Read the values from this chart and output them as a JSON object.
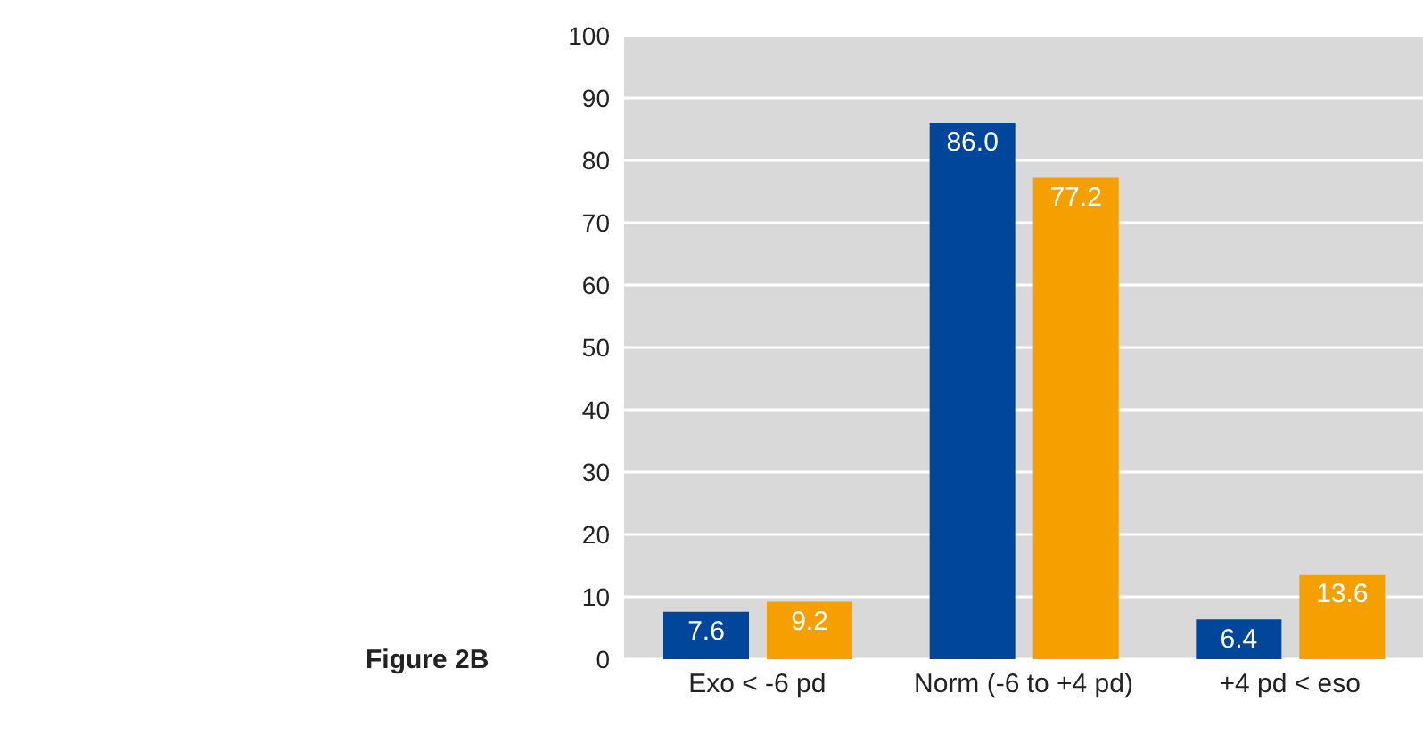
{
  "chart_data": {
    "type": "bar",
    "categories": [
      "Exo < -6 pd",
      "Norm (-6 to +4 pd)",
      "+4 pd < eso"
    ],
    "series": [
      {
        "color": "#00479b",
        "values": [
          7.6,
          86.0,
          6.4
        ],
        "value_labels": [
          "7.6",
          "86.0",
          "6.4"
        ]
      },
      {
        "color": "#f5a000",
        "values": [
          9.2,
          77.2,
          13.6
        ],
        "value_labels": [
          "9.2",
          "77.2",
          "13.6"
        ]
      }
    ],
    "ylim": [
      0,
      100
    ],
    "yticks": [
      0,
      10,
      20,
      30,
      40,
      50,
      60,
      70,
      80,
      90,
      100
    ],
    "grid": "y",
    "legend": false,
    "annotations": [
      "Figure 2B"
    ]
  }
}
